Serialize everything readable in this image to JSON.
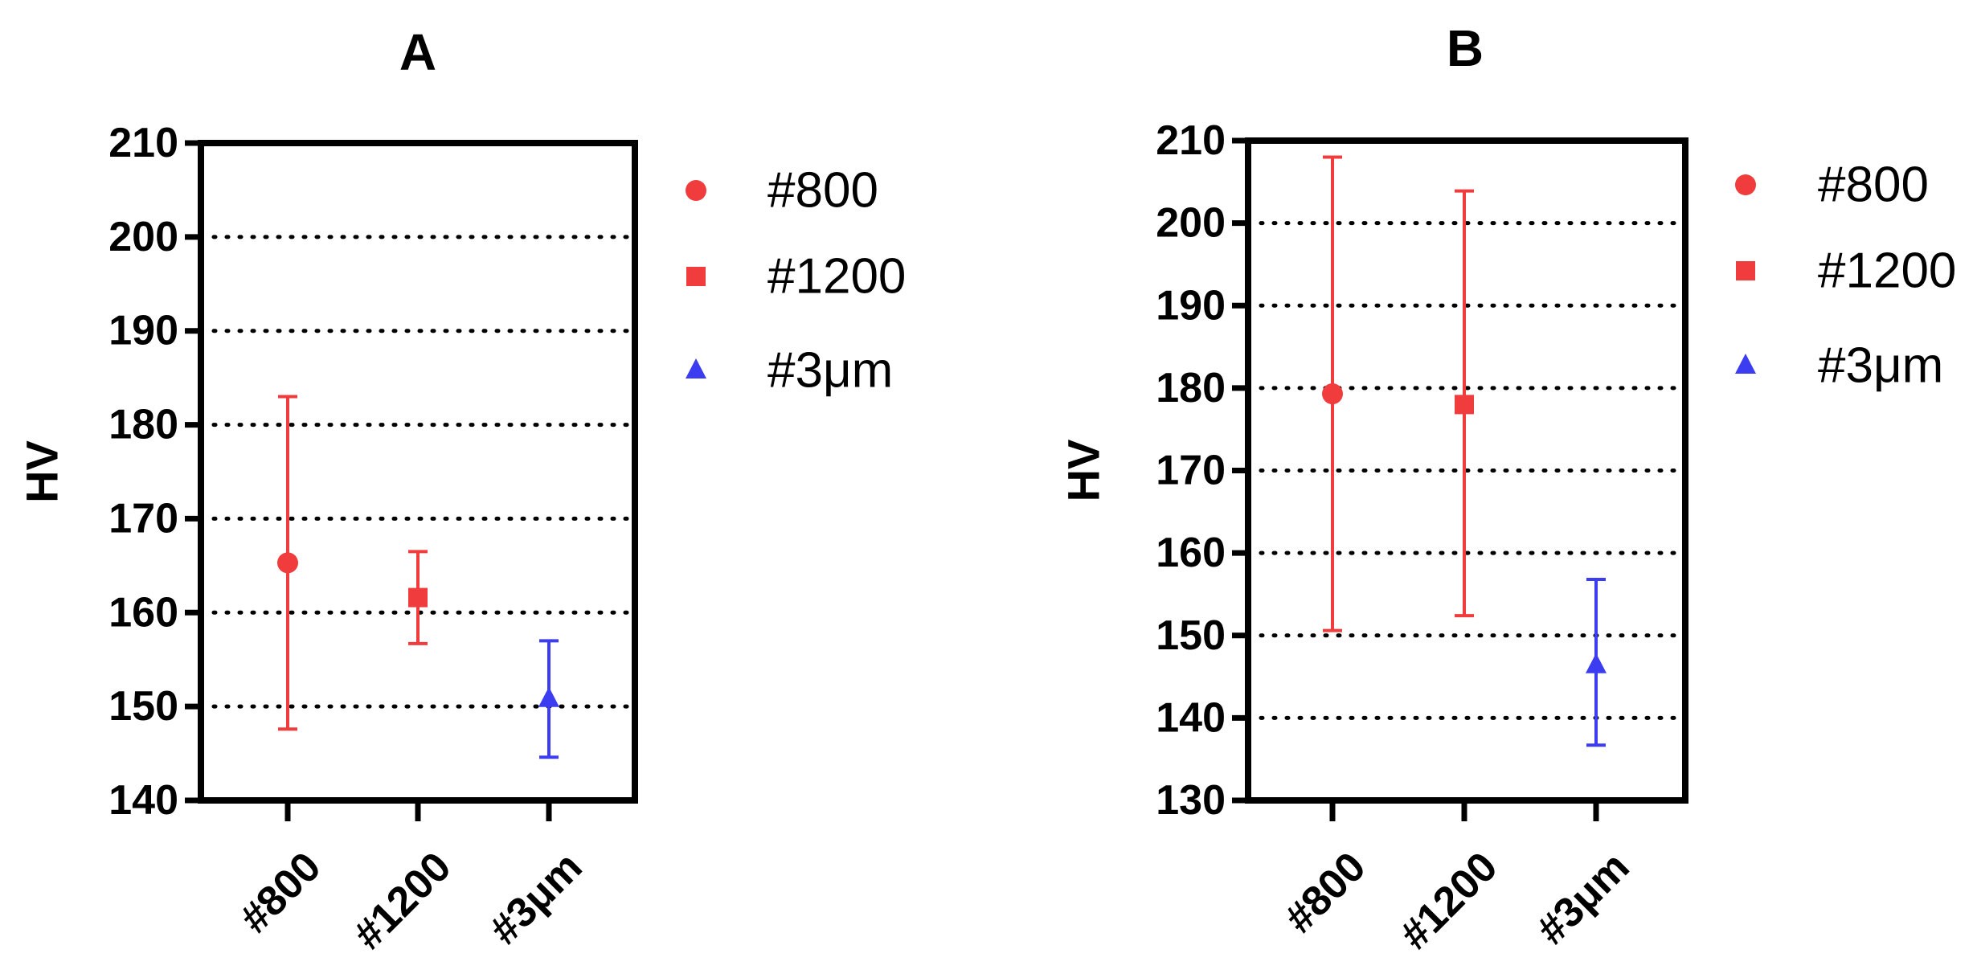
{
  "chart_data": [
    {
      "type": "scatter",
      "title": "A",
      "ylabel": "HV",
      "xlabel": "",
      "ylim": [
        140,
        210
      ],
      "yticks": [
        140,
        150,
        160,
        170,
        180,
        190,
        200,
        210
      ],
      "grid": "horizontal dotted",
      "legend_position": "right",
      "categories": [
        "#800",
        "#1200",
        "#3μm"
      ],
      "series": [
        {
          "name": "#800",
          "marker": "circle",
          "color": "#f03c3c",
          "category": "#800",
          "mean": 165.3,
          "upper": 183.0,
          "lower": 147.6
        },
        {
          "name": "#1200",
          "marker": "square",
          "color": "#f03c3c",
          "category": "#1200",
          "mean": 161.6,
          "upper": 166.5,
          "lower": 156.7
        },
        {
          "name": "#3μm",
          "marker": "triangle",
          "color": "#3c3cf0",
          "category": "#3μm",
          "mean": 150.8,
          "upper": 157.0,
          "lower": 144.6
        }
      ]
    },
    {
      "type": "scatter",
      "title": "B",
      "ylabel": "HV",
      "xlabel": "",
      "ylim": [
        130,
        210
      ],
      "yticks": [
        130,
        140,
        150,
        160,
        170,
        180,
        190,
        200,
        210
      ],
      "grid": "horizontal dotted",
      "legend_position": "right",
      "categories": [
        "#800",
        "#1200",
        "#3μm"
      ],
      "series": [
        {
          "name": "#800",
          "marker": "circle",
          "color": "#f03c3c",
          "category": "#800",
          "mean": 179.3,
          "upper": 208.0,
          "lower": 150.6
        },
        {
          "name": "#1200",
          "marker": "square",
          "color": "#f03c3c",
          "category": "#1200",
          "mean": 178.0,
          "upper": 203.9,
          "lower": 152.4
        },
        {
          "name": "#3μm",
          "marker": "triangle",
          "color": "#3c3cf0",
          "category": "#3μm",
          "mean": 146.4,
          "upper": 156.8,
          "lower": 136.7
        }
      ]
    }
  ]
}
